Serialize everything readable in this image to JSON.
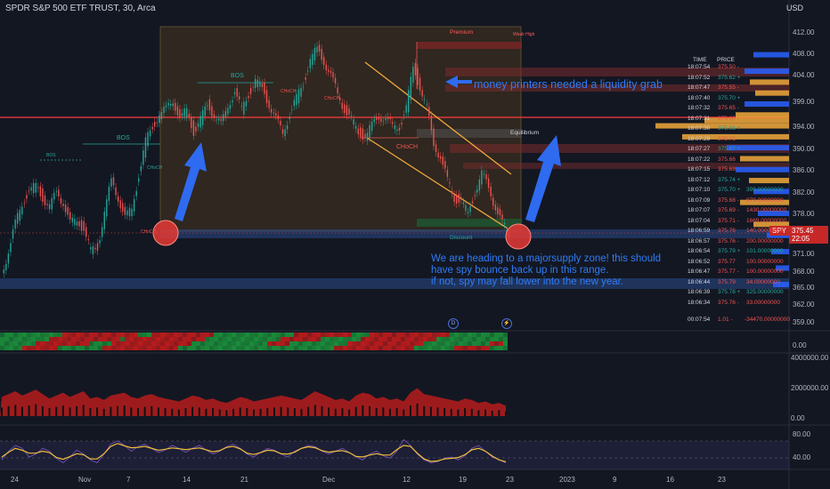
{
  "header": {
    "title": "SPDR S&P 500 ETF TRUST, 30, Arca",
    "currency": "USD"
  },
  "price_axis": {
    "labels": [
      "412.00",
      "408.00",
      "404.00",
      "399.00",
      "394.00",
      "390.00",
      "386.00",
      "382.00",
      "378.00",
      "375.00",
      "371.00",
      "368.00",
      "365.00",
      "362.00",
      "359.00"
    ],
    "current_price": "375.45",
    "countdown": "22:05",
    "symbol_badge": "SPY"
  },
  "indicator_axes": {
    "panel1": [
      "0.00"
    ],
    "panel2": [
      "4000000.00",
      "2000000.00",
      "0.00"
    ],
    "panel3": [
      "80.00",
      "40.00"
    ]
  },
  "time_axis": {
    "labels": [
      "24",
      "Nov",
      "7",
      "14",
      "21",
      "Dec",
      "12",
      "19",
      "23",
      "2023",
      "9",
      "16",
      "23"
    ]
  },
  "zones": {
    "premium": "Premium",
    "weak_high": "Weak High",
    "equilibrium": "Equilibrium",
    "discount": "Discount"
  },
  "structure_labels": [
    "BOS",
    "BOS",
    "BOS",
    "CHoCH",
    "CHoCH",
    "CHoCH",
    "CHoCH",
    "CHoCH"
  ],
  "annotations": {
    "liquidity": "money printers needed a liquidity grab",
    "supply": "We are heading to a majorsupply zone! this should\nhave spy bounce back up in this range.\nif not, spy may fall lower into the new year."
  },
  "time_and_sales": {
    "headers": {
      "time": "TIME",
      "price": "PRICE"
    },
    "rows": [
      {
        "time": "18:07:54",
        "price": "375.50 -",
        "size": ""
      },
      {
        "time": "18:07:52",
        "price": "375.62 +",
        "size": ""
      },
      {
        "time": "18:07:47",
        "price": "375.55 -",
        "size": ""
      },
      {
        "time": "18:07:40",
        "price": "375.70 +",
        "size": ""
      },
      {
        "time": "18:07:32",
        "price": "375.65 -",
        "size": ""
      },
      {
        "time": "18:07:31",
        "price": "375.60 -",
        "size": ""
      },
      {
        "time": "18:07:30",
        "price": "375.66 +",
        "size": ""
      },
      {
        "time": "18:07:29",
        "price": "375.71 -",
        "size": ""
      },
      {
        "time": "18:07:27",
        "price": "375.67 +",
        "size": ""
      },
      {
        "time": "18:07:22",
        "price": "375.66",
        "size": ""
      },
      {
        "time": "18:07:15",
        "price": "375.69 -",
        "size": ""
      },
      {
        "time": "18:07:12",
        "price": "375.74 +",
        "size": ""
      },
      {
        "time": "18:07:10",
        "price": "375.70 +",
        "size": "399.00000000"
      },
      {
        "time": "18:07:09",
        "price": "375.68 -",
        "size": "979.00000000"
      },
      {
        "time": "18:07:07",
        "price": "375.69 -",
        "size": "1430.00000000"
      },
      {
        "time": "18:07:04",
        "price": "375.71 -",
        "size": "1669.00000000"
      },
      {
        "time": "18:06:59",
        "price": "375.76",
        "size": "140.00000000"
      },
      {
        "time": "18:06:57",
        "price": "375.76 -",
        "size": "200.00000000"
      },
      {
        "time": "18:06:54",
        "price": "375.79 +",
        "size": "101.00000000"
      },
      {
        "time": "18:06:52",
        "price": "375.77",
        "size": "100.00000000"
      },
      {
        "time": "18:06:47",
        "price": "375.77 -",
        "size": "100.00000000"
      },
      {
        "time": "18:06:44",
        "price": "375.79",
        "size": "34.00000000"
      },
      {
        "time": "18:06:39",
        "price": "375.78 +",
        "size": "325.00000000"
      },
      {
        "time": "18:06:34",
        "price": "375.76 -",
        "size": "33.00000000"
      }
    ],
    "summary": {
      "time": "00:07:54",
      "price": "1.01 -",
      "size": "-34470.00000000"
    }
  },
  "chart_data": {
    "type": "line",
    "title": "SPDR S&P 500 ETF TRUST, 30, Arca",
    "xlabel": "",
    "ylabel": "",
    "x_ticks": [
      "24",
      "Nov",
      "7",
      "14",
      "21",
      "Dec",
      "12",
      "19",
      "23",
      "2023",
      "9",
      "16",
      "23"
    ],
    "ylim": [
      359,
      413
    ],
    "series": [
      {
        "values": [
          368,
          372,
          377,
          381,
          383,
          384,
          382,
          380,
          383,
          381,
          377,
          378,
          376,
          372,
          373,
          379,
          385,
          382,
          378,
          380,
          386,
          392,
          395,
          397,
          398,
          400,
          396,
          398,
          394,
          396,
          399,
          397,
          395,
          399,
          401,
          398,
          401,
          403,
          402,
          399,
          396,
          394,
          397,
          400,
          403,
          407,
          409,
          407,
          404,
          401,
          398,
          396,
          394,
          393,
          395,
          397,
          396,
          395,
          395,
          398,
          406,
          402,
          398,
          392,
          389,
          385,
          382,
          381,
          379,
          383,
          386,
          384,
          380,
          377,
          375.45
        ]
      }
    ],
    "indicator_volume": {
      "ylim": [
        0,
        4000000
      ],
      "values": [
        1300000,
        1500000,
        1700000,
        1400000,
        1600000,
        1800000,
        1500000,
        1200000,
        1400000,
        1600000,
        1300000,
        1500000,
        1700000,
        1200000,
        1300000,
        1100000,
        1400000,
        1500000,
        1600000,
        1300000,
        1200000,
        1400000,
        1500000,
        1300000,
        1200000,
        1100000,
        1000000,
        1200000,
        1400000,
        1300000,
        1100000,
        1200000,
        1000000,
        900000,
        1100000,
        1300000,
        1200000,
        1000000,
        1100000,
        1200000,
        1300000,
        1400000,
        1300000,
        1200000,
        1100000,
        1400000,
        1700000,
        1500000,
        1300000,
        1100000,
        1200000,
        1000000,
        1400000,
        1600000,
        1500000,
        1200000,
        1300000,
        1100000,
        1200000,
        1000000,
        1600000,
        1900000,
        1500000,
        1400000,
        1300000,
        1200000,
        1100000,
        1000000,
        1200000,
        1100000,
        900000,
        1000000,
        800000,
        900000,
        700000
      ]
    },
    "indicator_oscillator": {
      "ylim": [
        20,
        90
      ],
      "levels": [
        80,
        40
      ],
      "values": [
        35,
        50,
        60,
        55,
        40,
        45,
        55,
        50,
        38,
        30,
        40,
        52,
        45,
        35,
        30,
        45,
        62,
        68,
        60,
        50,
        58,
        62,
        55,
        48,
        52,
        60,
        55,
        48,
        55,
        60,
        52,
        45,
        50,
        58,
        62,
        55,
        45,
        40,
        48,
        55,
        52,
        45,
        40,
        50,
        55,
        60,
        58,
        50,
        45,
        50,
        55,
        48,
        40,
        35,
        45,
        50,
        42,
        38,
        50,
        70,
        60,
        45,
        35,
        30,
        32,
        38,
        40,
        35,
        42,
        55,
        60,
        50,
        40,
        35,
        30
      ]
    }
  },
  "icons": {
    "dividends": "D",
    "earnings": "lightning-icon"
  }
}
